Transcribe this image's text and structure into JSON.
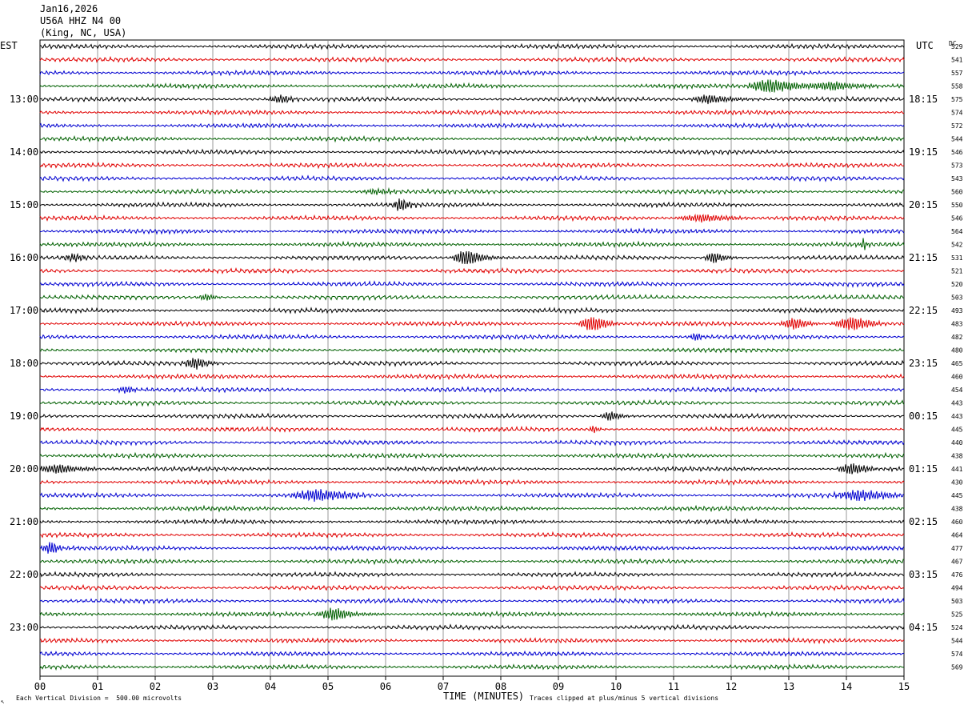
{
  "header": {
    "date": "Jan16,2026",
    "station": "U56A HHZ N4 00",
    "location": "(King, NC, USA)"
  },
  "axes": {
    "left_tz": "EST",
    "right_tz": "UTC",
    "dc_label": "DC",
    "x_title": "TIME (MINUTES)"
  },
  "footer": {
    "scale_note": "Each Vertical Division =  500.00 microvolts",
    "clip_note": "Traces clipped at plus/minus 5 vertical divisions",
    "corner_mark": "↖"
  },
  "colors": {
    "trace_cycle": [
      "#000000",
      "#e00000",
      "#0000d0",
      "#006000"
    ],
    "grid": "#808080"
  },
  "chart_data": {
    "type": "line",
    "title": "",
    "x_range": [
      0,
      15
    ],
    "x_ticks": [
      "00",
      "01",
      "02",
      "03",
      "04",
      "05",
      "06",
      "07",
      "08",
      "09",
      "10",
      "11",
      "12",
      "13",
      "14",
      "15"
    ],
    "rows_per_hour": 4,
    "row_count": 48,
    "left_hour_labels": [
      "13:00",
      "14:00",
      "15:00",
      "16:00",
      "17:00",
      "18:00",
      "19:00",
      "20:00",
      "21:00",
      "22:00",
      "23:00"
    ],
    "right_hour_labels": [
      "18:15",
      "19:15",
      "20:15",
      "21:15",
      "22:15",
      "23:15",
      "00:15",
      "01:15",
      "02:15",
      "03:15",
      "04:15"
    ],
    "first_labeled_row": 4,
    "dc_values": [
      529,
      541,
      557,
      558,
      575,
      574,
      572,
      544,
      546,
      573,
      543,
      560,
      550,
      546,
      564,
      542,
      531,
      521,
      520,
      503,
      493,
      483,
      482,
      480,
      465,
      460,
      454,
      443,
      443,
      445,
      440,
      438,
      441,
      430,
      445,
      438,
      460,
      464,
      477,
      467,
      476,
      494,
      503,
      525,
      524,
      544,
      574,
      569
    ],
    "events": [
      {
        "row": 3,
        "minute": 12.7,
        "amp": 2.4,
        "dur": 0.5
      },
      {
        "row": 3,
        "minute": 13.8,
        "amp": 1.2,
        "dur": 0.6
      },
      {
        "row": 4,
        "minute": 4.2,
        "amp": 1.2,
        "dur": 0.3
      },
      {
        "row": 4,
        "minute": 11.6,
        "amp": 1.6,
        "dur": 0.4
      },
      {
        "row": 11,
        "minute": 5.8,
        "amp": 1.0,
        "dur": 0.3
      },
      {
        "row": 12,
        "minute": 6.25,
        "amp": 2.2,
        "dur": 0.15
      },
      {
        "row": 13,
        "minute": 11.5,
        "amp": 1.4,
        "dur": 0.5
      },
      {
        "row": 15,
        "minute": 14.3,
        "amp": 2.0,
        "dur": 0.1
      },
      {
        "row": 16,
        "minute": 0.6,
        "amp": 1.5,
        "dur": 0.3
      },
      {
        "row": 16,
        "minute": 7.4,
        "amp": 3.0,
        "dur": 0.3
      },
      {
        "row": 16,
        "minute": 11.7,
        "amp": 1.8,
        "dur": 0.2
      },
      {
        "row": 19,
        "minute": 2.9,
        "amp": 1.0,
        "dur": 0.2
      },
      {
        "row": 21,
        "minute": 9.6,
        "amp": 2.6,
        "dur": 0.3
      },
      {
        "row": 21,
        "minute": 13.1,
        "amp": 1.8,
        "dur": 0.3
      },
      {
        "row": 21,
        "minute": 14.1,
        "amp": 2.2,
        "dur": 0.4
      },
      {
        "row": 22,
        "minute": 11.4,
        "amp": 1.4,
        "dur": 0.15
      },
      {
        "row": 24,
        "minute": 2.7,
        "amp": 2.0,
        "dur": 0.3
      },
      {
        "row": 26,
        "minute": 1.5,
        "amp": 1.0,
        "dur": 0.3
      },
      {
        "row": 28,
        "minute": 9.9,
        "amp": 1.6,
        "dur": 0.2
      },
      {
        "row": 29,
        "minute": 9.6,
        "amp": 1.2,
        "dur": 0.1
      },
      {
        "row": 32,
        "minute": 0.3,
        "amp": 1.5,
        "dur": 0.5
      },
      {
        "row": 32,
        "minute": 14.1,
        "amp": 2.0,
        "dur": 0.3
      },
      {
        "row": 34,
        "minute": 4.8,
        "amp": 2.3,
        "dur": 0.5
      },
      {
        "row": 34,
        "minute": 14.2,
        "amp": 2.0,
        "dur": 0.5
      },
      {
        "row": 38,
        "minute": 0.2,
        "amp": 2.0,
        "dur": 0.2
      },
      {
        "row": 43,
        "minute": 5.1,
        "amp": 2.0,
        "dur": 0.4
      }
    ]
  }
}
